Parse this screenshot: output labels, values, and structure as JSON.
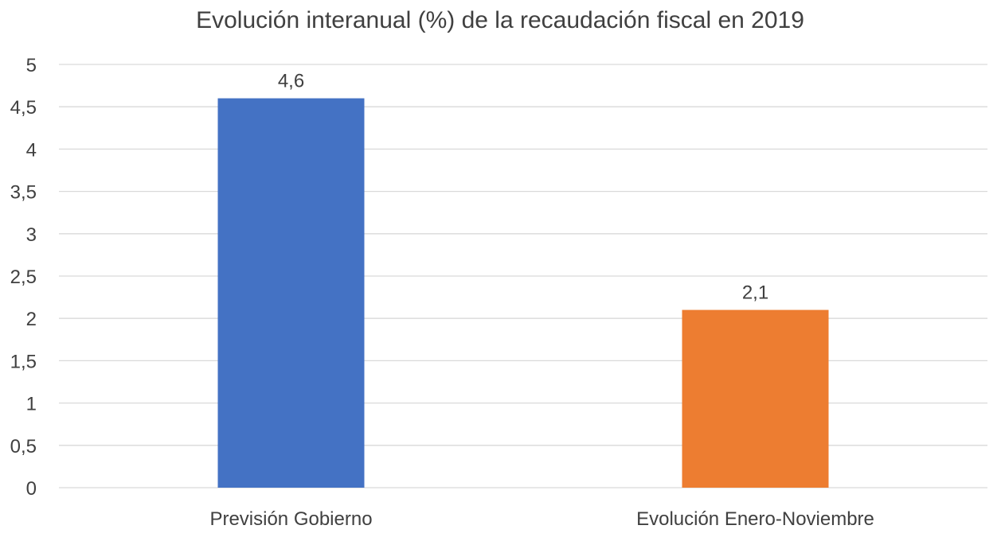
{
  "chart_data": {
    "type": "bar",
    "title": "Evolución interanual (%) de la recaudación fiscal en 2019",
    "categories": [
      "Previsión Gobierno",
      "Evolución Enero-Noviembre"
    ],
    "values": [
      4.6,
      2.1
    ],
    "data_labels": [
      "4,6",
      "2,1"
    ],
    "colors": [
      "#4472c4",
      "#ed7d31"
    ],
    "ylim": [
      0,
      5
    ],
    "yticks": [
      0,
      0.5,
      1,
      1.5,
      2,
      2.5,
      3,
      3.5,
      4,
      4.5,
      5
    ],
    "ytick_labels": [
      "0",
      "0,5",
      "1",
      "1,5",
      "2",
      "2,5",
      "3",
      "3,5",
      "4",
      "4,5",
      "5"
    ],
    "xlabel": "",
    "ylabel": "",
    "grid": true,
    "legend": "none"
  }
}
